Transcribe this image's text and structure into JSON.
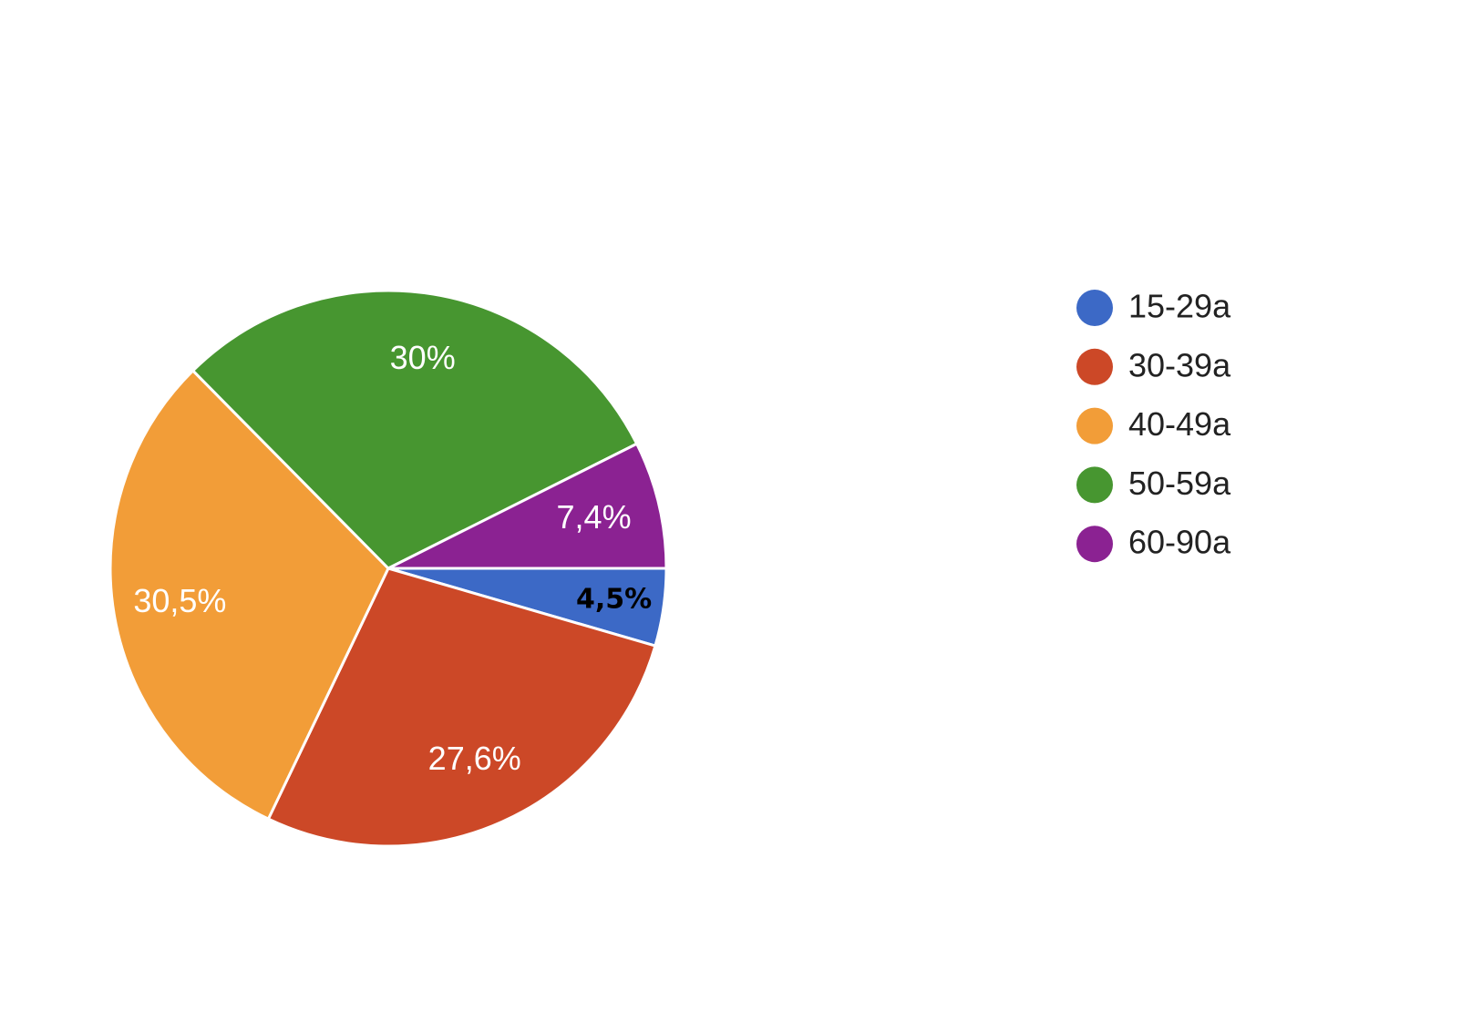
{
  "chart_data": {
    "type": "pie",
    "categories": [
      "15-29a",
      "30-39a",
      "40-49a",
      "50-59a",
      "60-90a"
    ],
    "values": [
      4.5,
      27.6,
      30.5,
      30,
      7.4
    ],
    "value_labels": [
      "4,5%",
      "27,6%",
      "30,5%",
      "30%",
      "7,4%"
    ],
    "colors": [
      "#3c69c6",
      "#cc4827",
      "#f29d38",
      "#479630",
      "#8b2292"
    ],
    "label_colors": [
      "#000000",
      "#ffffff",
      "#ffffff",
      "#ffffff",
      "#ffffff"
    ],
    "legend": "right"
  }
}
